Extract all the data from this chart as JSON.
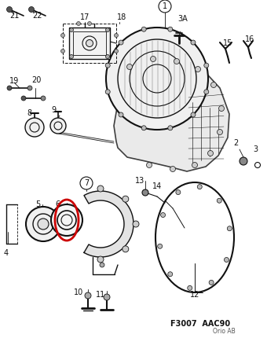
{
  "bg_color": "#ffffff",
  "line_color": "#111111",
  "red_color": "#cc0000",
  "figure_code": "F3007  AAC90",
  "copyright": "Orio AB",
  "figsize": [
    3.4,
    4.3
  ],
  "dpi": 100
}
